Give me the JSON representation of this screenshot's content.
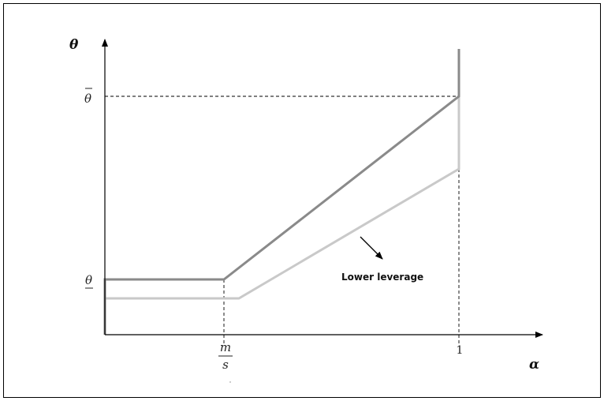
{
  "figure": {
    "y_axis_title": "θ",
    "x_axis_title": "α",
    "y_tick_high": "θ",
    "y_tick_low": "θ",
    "x_tick_m": "m",
    "x_tick_s": "s",
    "x_tick_one": "1",
    "annotation": "Lower leverage"
  },
  "colors": {
    "frame": "#000000",
    "axis": "#000000",
    "upper_curve": "#8a8a8a",
    "lower_curve": "#c9c9c9",
    "guides": "#000000"
  },
  "chart_data": {
    "type": "line",
    "x_ticks": [
      "m/s",
      "1"
    ],
    "y_ticks": [
      "θ̲",
      "θ̄"
    ],
    "series": [
      {
        "points": [
          [
            0.0,
            0.0
          ],
          [
            0.0,
            0.2
          ],
          [
            0.28,
            0.2
          ],
          [
            0.9,
            0.83
          ],
          [
            0.9,
            1.0
          ]
        ]
      },
      {
        "points": [
          [
            0.0,
            0.13
          ],
          [
            0.31,
            0.13
          ],
          [
            0.9,
            0.58
          ],
          [
            0.9,
            0.83
          ]
        ]
      }
    ],
    "annotation": "Lower leverage"
  }
}
